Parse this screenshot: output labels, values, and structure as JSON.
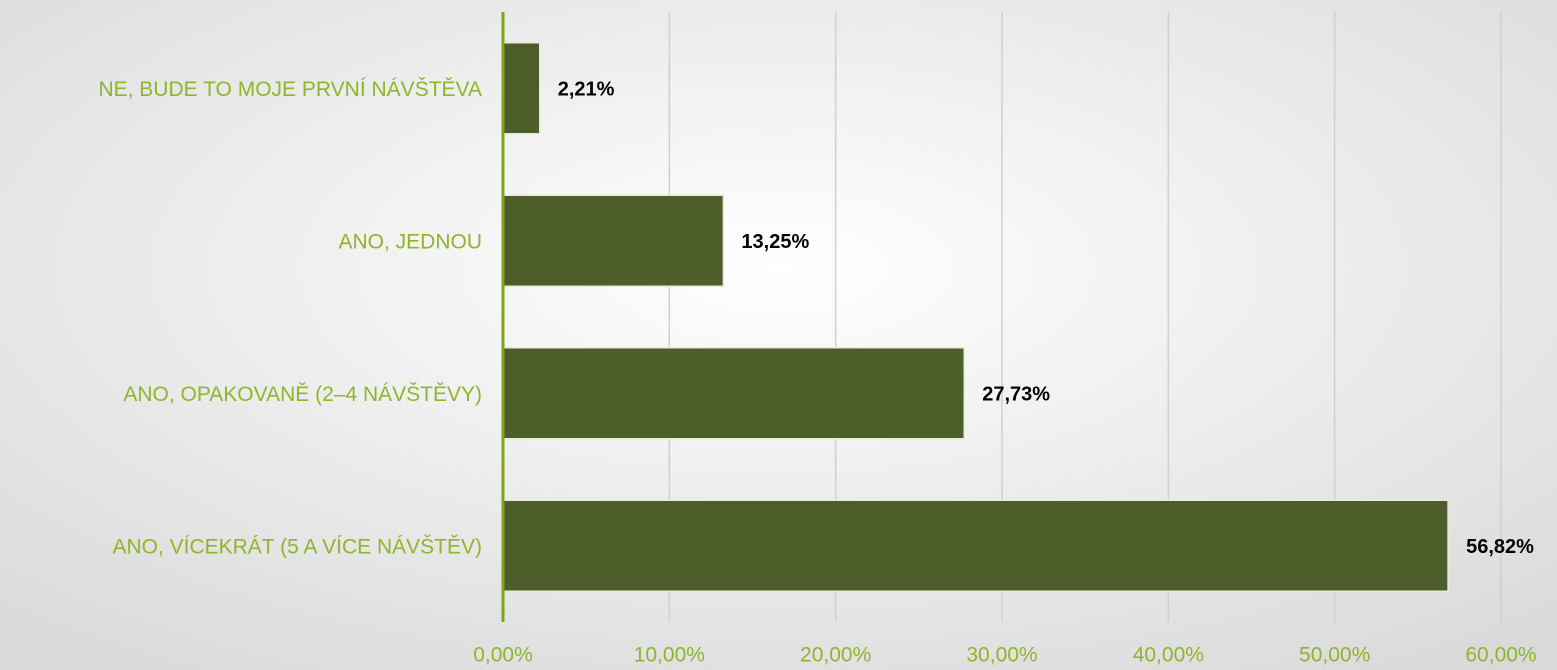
{
  "chart_data": {
    "type": "bar",
    "orientation": "horizontal",
    "categories": [
      "NE, BUDE TO MOJE PRVNÍ NÁVŠTĚVA",
      "ANO, JEDNOU",
      "ANO, OPAKOVANĚ (2–4 NÁVŠTĚVY)",
      "ANO, VÍCEKRÁT (5 A VÍCE NÁVŠTĚV)"
    ],
    "values": [
      2.21,
      13.25,
      27.73,
      56.82
    ],
    "value_labels": [
      "2,21%",
      "13,25%",
      "27,73%",
      "56,82%"
    ],
    "color": "#4e5e2a",
    "xlim": [
      0,
      60
    ],
    "xticks": [
      {
        "value": 0,
        "label": "0,00%"
      },
      {
        "value": 10,
        "label": "10,00%"
      },
      {
        "value": 20,
        "label": "20,00%"
      },
      {
        "value": 30,
        "label": "30,00%"
      },
      {
        "value": 40,
        "label": "40,00%"
      },
      {
        "value": 50,
        "label": "50,00%"
      },
      {
        "value": 60,
        "label": "60,00%"
      }
    ],
    "grid": true
  }
}
